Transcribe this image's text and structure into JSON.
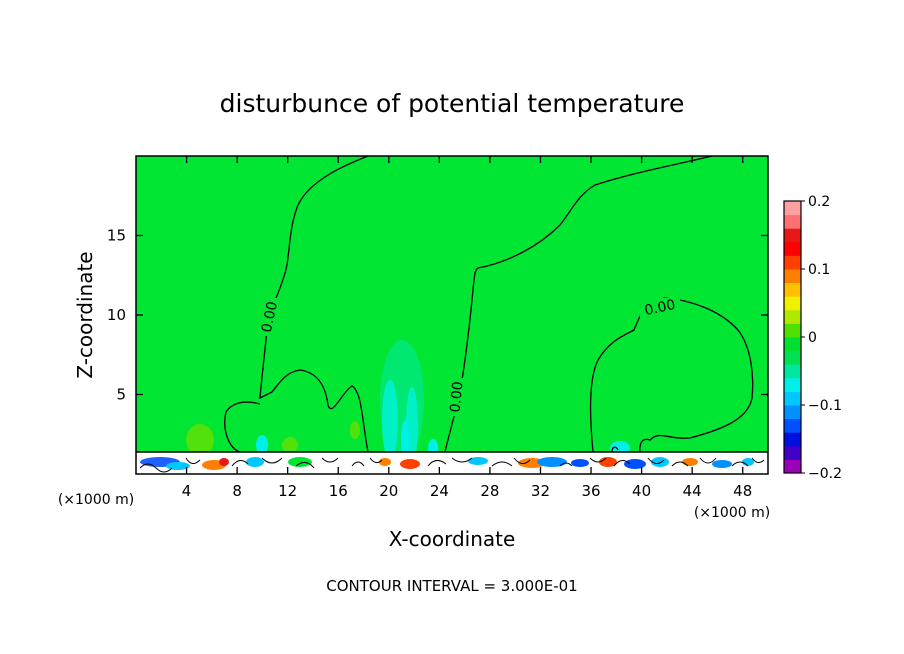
{
  "chart_data": {
    "type": "heatmap",
    "title": "disturbunce of potential temperature",
    "xlabel": "X-coordinate",
    "ylabel": "Z-coordinate",
    "x_unit": "(×1000 m)",
    "y_unit": "(×1000 m)",
    "xlim": [
      0,
      50
    ],
    "ylim": [
      0,
      20
    ],
    "x_ticks": [
      4,
      8,
      12,
      16,
      20,
      24,
      28,
      32,
      36,
      40,
      44,
      48
    ],
    "y_ticks": [
      5,
      10,
      15
    ],
    "colorbar": {
      "range": [
        -0.2,
        0.2
      ],
      "tick_values": [
        0.2,
        0.1,
        0,
        -0.1,
        -0.2
      ],
      "tick_labels": [
        "0.2",
        "0.1",
        "0",
        "−0.1",
        "−0.2"
      ],
      "colors": [
        "#9a00b8",
        "#4000c8",
        "#0010e0",
        "#0050ff",
        "#0090ff",
        "#00c8ff",
        "#00f0e8",
        "#00e8a0",
        "#00e050",
        "#00e030",
        "#50e000",
        "#b0e800",
        "#f0f000",
        "#ffc000",
        "#ff8000",
        "#ff4000",
        "#ff0000",
        "#e81818",
        "#ff7070",
        "#ffa0a0"
      ]
    },
    "background_color": "#00e632",
    "contour_label": "0.00",
    "annotation": "CONTOUR INTERVAL = 3.000E-01"
  }
}
